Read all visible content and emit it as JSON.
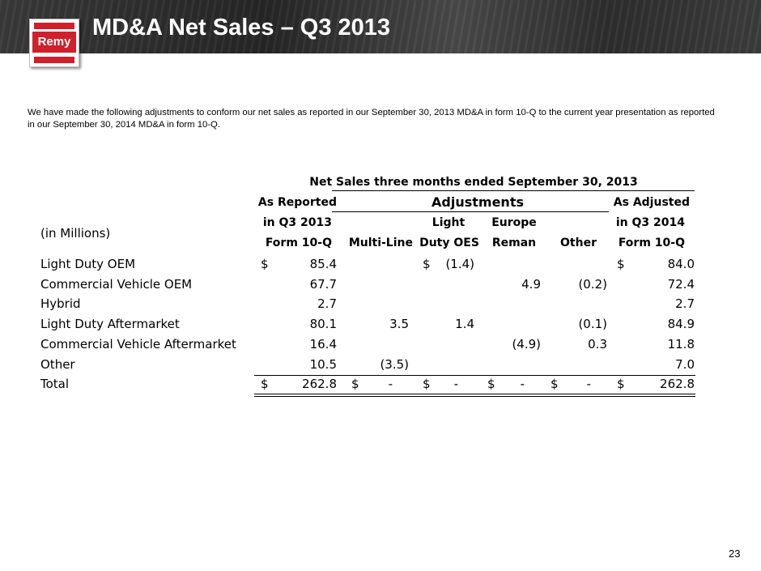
{
  "header": {
    "title": "MD&A Net Sales – Q3 2013",
    "logo_text": "Remy"
  },
  "intro": "We have made the following adjustments to conform  our net sales as reported in our September 30, 2013 MD&A in form 10-Q to the current year presentation as reported in our September 30, 2014 MD&A in form 10-Q.",
  "table": {
    "title": "Net Sales three months ended September 30, 2013",
    "units_label": "(in Millions)",
    "adjustments_label": "Adjustments",
    "as_reported": [
      "As Reported",
      "in Q3 2013",
      "Form 10-Q"
    ],
    "as_adjusted": [
      "As Adjusted",
      "in Q3 2014",
      "Form 10-Q"
    ],
    "multi_line": "Multi-Line",
    "light_duty": [
      "Light",
      "Duty OES"
    ],
    "europe": [
      "Europe",
      "Reman"
    ],
    "other": "Other",
    "currency": "$",
    "rows": [
      {
        "label": "Light Duty OEM",
        "reported": "85.4",
        "multi_line": "",
        "light_duty": "(1.4)",
        "europe": "",
        "other": "",
        "adjusted": "84.0"
      },
      {
        "label": "Commercial Vehicle OEM",
        "reported": "67.7",
        "multi_line": "",
        "light_duty": "",
        "europe": "4.9",
        "other": "(0.2)",
        "adjusted": "72.4"
      },
      {
        "label": "Hybrid",
        "reported": "2.7",
        "multi_line": "",
        "light_duty": "",
        "europe": "",
        "other": "",
        "adjusted": "2.7"
      },
      {
        "label": "Light Duty Aftermarket",
        "reported": "80.1",
        "multi_line": "3.5",
        "light_duty": "1.4",
        "europe": "",
        "other": "(0.1)",
        "adjusted": "84.9"
      },
      {
        "label": "Commercial Vehicle Aftermarket",
        "reported": "16.4",
        "multi_line": "",
        "light_duty": "",
        "europe": "(4.9)",
        "other": "0.3",
        "adjusted": "11.8"
      },
      {
        "label": "Other",
        "reported": "10.5",
        "multi_line": "(3.5)",
        "light_duty": "",
        "europe": "",
        "other": "",
        "adjusted": "7.0"
      },
      {
        "label": "Total",
        "reported": "262.8",
        "multi_line": "-",
        "light_duty": "-",
        "europe": "-",
        "other": "-",
        "adjusted": "262.8"
      }
    ]
  },
  "page_number": "23"
}
